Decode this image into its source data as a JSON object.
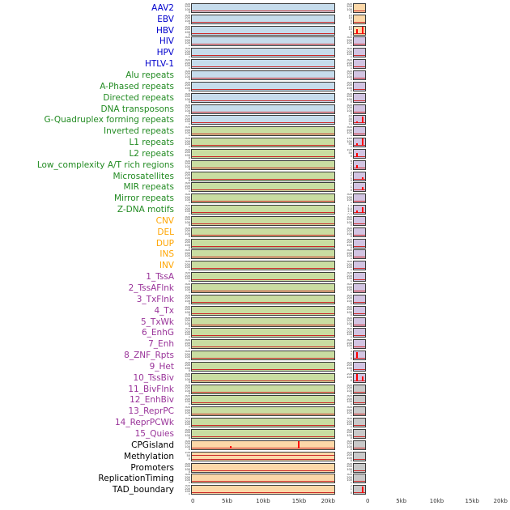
{
  "figure": {
    "panel_colors": {
      "blue": "#c6dcec",
      "green": "#c9dda1",
      "orange": "#fcd8a8",
      "purple": "#d2c4e2",
      "gray": "#c9c9c9"
    },
    "label_colors": {
      "virus": "#0000cc",
      "repeat": "#228b22",
      "sv": "#ffa500",
      "chromhmm": "#993399",
      "other": "#000000"
    },
    "line_color": "#cc2a2a",
    "spike_color": "#ff0000"
  },
  "chart_data": {
    "type": "line",
    "layout": "44 feature rows x 2 columns of mini profile panels, x axis 0-20kb",
    "x_ticks": [
      "0",
      "5kb",
      "10kb",
      "15kb",
      "20kb"
    ],
    "x_range_kb": [
      0,
      20
    ],
    "default_yticks": [
      "300",
      "200",
      "100",
      "0"
    ],
    "default_ymax": 300,
    "rows": [
      {
        "label": "AAV2",
        "group": "virus",
        "left": {
          "bg": "blue"
        },
        "right": {
          "bg": "orange"
        }
      },
      {
        "label": "EBV",
        "group": "virus",
        "left": {
          "bg": "blue"
        },
        "right": {
          "bg": "orange",
          "ymax": 15,
          "yticks": [
            "15",
            "10",
            "5",
            "0"
          ]
        }
      },
      {
        "label": "HBV",
        "group": "virus",
        "left": {
          "bg": "blue"
        },
        "right": {
          "bg": "orange",
          "ymax": 15,
          "yticks": [
            "15",
            "10",
            "5",
            "0"
          ],
          "peaks": [
            {
              "x_kb": 5,
              "v": 8
            },
            {
              "x_kb": 15,
              "v": 14
            }
          ]
        }
      },
      {
        "label": "HIV",
        "group": "virus",
        "left": {
          "bg": "blue"
        },
        "right": {
          "bg": "purple"
        }
      },
      {
        "label": "HPV",
        "group": "virus",
        "left": {
          "bg": "blue"
        },
        "right": {
          "bg": "purple"
        }
      },
      {
        "label": "HTLV-1",
        "group": "virus",
        "left": {
          "bg": "blue"
        },
        "right": {
          "bg": "purple"
        }
      },
      {
        "label": "Alu repeats",
        "group": "repeat",
        "left": {
          "bg": "blue"
        },
        "right": {
          "bg": "purple"
        }
      },
      {
        "label": "A-Phased repeats",
        "group": "repeat",
        "left": {
          "bg": "blue"
        },
        "right": {
          "bg": "purple"
        }
      },
      {
        "label": "Directed repeats",
        "group": "repeat",
        "left": {
          "bg": "blue"
        },
        "right": {
          "bg": "purple"
        }
      },
      {
        "label": "DNA transposons",
        "group": "repeat",
        "left": {
          "bg": "blue"
        },
        "right": {
          "bg": "purple"
        }
      },
      {
        "label": "G-Quadruplex forming repeats",
        "group": "repeat",
        "left": {
          "bg": "blue"
        },
        "right": {
          "bg": "purple",
          "ymax": 40,
          "yticks": [
            "40",
            "30",
            "20",
            "10",
            "0"
          ],
          "peaks": [
            {
              "x_kb": 5,
              "v": 9
            },
            {
              "x_kb": 15,
              "v": 35
            }
          ]
        }
      },
      {
        "label": "Inverted repeats",
        "group": "repeat",
        "left": {
          "bg": "green"
        },
        "right": {
          "bg": "purple"
        }
      },
      {
        "label": "L1 repeats",
        "group": "repeat",
        "left": {
          "bg": "green"
        },
        "right": {
          "bg": "purple",
          "ymax": 150,
          "yticks": [
            "150",
            "100",
            "50",
            "0"
          ],
          "peaks": [
            {
              "x_kb": 5,
              "v": 45
            },
            {
              "x_kb": 15,
              "v": 130
            }
          ]
        }
      },
      {
        "label": "L2 repeats",
        "group": "repeat",
        "left": {
          "bg": "green"
        },
        "right": {
          "bg": "purple",
          "ymax": 100,
          "yticks": [
            "100",
            "50",
            "0"
          ],
          "peaks": [
            {
              "x_kb": 5,
              "v": 45
            }
          ]
        }
      },
      {
        "label": "Low_complexity A/T rich regions",
        "group": "repeat",
        "left": {
          "bg": "green"
        },
        "right": {
          "bg": "purple",
          "ymax": 6,
          "yticks": [
            "6",
            "4",
            "2",
            "0"
          ],
          "peaks": [
            {
              "x_kb": 5,
              "v": 2
            }
          ]
        }
      },
      {
        "label": "Microsatellites",
        "group": "repeat",
        "left": {
          "bg": "green"
        },
        "right": {
          "bg": "purple",
          "ymax": 3,
          "yticks": [
            "3",
            "2",
            "1",
            "0"
          ],
          "peaks": [
            {
              "x_kb": 15,
              "v": 0.8
            }
          ]
        }
      },
      {
        "label": "MIR repeats",
        "group": "repeat",
        "left": {
          "bg": "green"
        },
        "right": {
          "bg": "purple",
          "ymax": 2,
          "yticks": [
            "2",
            "1",
            "0"
          ],
          "peaks": [
            {
              "x_kb": 15,
              "v": 0.8
            }
          ]
        }
      },
      {
        "label": "Mirror repeats",
        "group": "repeat",
        "left": {
          "bg": "green"
        },
        "right": {
          "bg": "purple"
        }
      },
      {
        "label": "Z-DNA motifs",
        "group": "repeat",
        "left": {
          "bg": "green"
        },
        "right": {
          "bg": "purple",
          "ymax": 7.5,
          "yticks": [
            "7.5",
            "5.0",
            "2.5",
            "0.0"
          ],
          "peaks": [
            {
              "x_kb": 5,
              "v": 2.5
            },
            {
              "x_kb": 15,
              "v": 5.5
            }
          ]
        }
      },
      {
        "label": "CNV",
        "group": "sv",
        "left": {
          "bg": "green"
        },
        "right": {
          "bg": "purple"
        }
      },
      {
        "label": "DEL",
        "group": "sv",
        "left": {
          "bg": "green"
        },
        "right": {
          "bg": "purple"
        }
      },
      {
        "label": "DUP",
        "group": "sv",
        "left": {
          "bg": "green"
        },
        "right": {
          "bg": "purple"
        }
      },
      {
        "label": "INS",
        "group": "sv",
        "left": {
          "bg": "green"
        },
        "right": {
          "bg": "purple"
        }
      },
      {
        "label": "INV",
        "group": "sv",
        "left": {
          "bg": "green"
        },
        "right": {
          "bg": "purple"
        }
      },
      {
        "label": "1_TssA",
        "group": "chromhmm",
        "left": {
          "bg": "green"
        },
        "right": {
          "bg": "purple"
        }
      },
      {
        "label": "2_TssAFlnk",
        "group": "chromhmm",
        "left": {
          "bg": "green"
        },
        "right": {
          "bg": "purple"
        }
      },
      {
        "label": "3_TxFlnk",
        "group": "chromhmm",
        "left": {
          "bg": "green"
        },
        "right": {
          "bg": "purple"
        }
      },
      {
        "label": "4_Tx",
        "group": "chromhmm",
        "left": {
          "bg": "green"
        },
        "right": {
          "bg": "purple"
        }
      },
      {
        "label": "5_TxWk",
        "group": "chromhmm",
        "left": {
          "bg": "green"
        },
        "right": {
          "bg": "purple"
        }
      },
      {
        "label": "6_EnhG",
        "group": "chromhmm",
        "left": {
          "bg": "green"
        },
        "right": {
          "bg": "purple"
        }
      },
      {
        "label": "7_Enh",
        "group": "chromhmm",
        "left": {
          "bg": "green"
        },
        "right": {
          "bg": "purple"
        }
      },
      {
        "label": "8_ZNF_Rpts",
        "group": "chromhmm",
        "left": {
          "bg": "green"
        },
        "right": {
          "bg": "purple",
          "ymax": 4,
          "yticks": [
            "4",
            "2",
            "0"
          ],
          "peaks": [
            {
              "x_kb": 5.5,
              "v": 3.3
            }
          ]
        }
      },
      {
        "label": "9_Het",
        "group": "chromhmm",
        "left": {
          "bg": "green"
        },
        "right": {
          "bg": "purple"
        }
      },
      {
        "label": "10_TssBiv",
        "group": "chromhmm",
        "left": {
          "bg": "green"
        },
        "right": {
          "bg": "purple",
          "ymax": 200,
          "yticks": [
            "200",
            "100",
            "0"
          ],
          "peaks": [
            {
              "x_kb": 5,
              "v": 170
            },
            {
              "x_kb": 15,
              "v": 110
            }
          ]
        }
      },
      {
        "label": "11_BivFlnk",
        "group": "chromhmm",
        "left": {
          "bg": "green"
        },
        "right": {
          "bg": "gray"
        }
      },
      {
        "label": "12_EnhBiv",
        "group": "chromhmm",
        "left": {
          "bg": "green"
        },
        "right": {
          "bg": "gray"
        }
      },
      {
        "label": "13_ReprPC",
        "group": "chromhmm",
        "left": {
          "bg": "green"
        },
        "right": {
          "bg": "gray"
        }
      },
      {
        "label": "14_ReprPCWk",
        "group": "chromhmm",
        "left": {
          "bg": "green"
        },
        "right": {
          "bg": "gray"
        }
      },
      {
        "label": "15_Quies",
        "group": "chromhmm",
        "left": {
          "bg": "green"
        },
        "right": {
          "bg": "gray"
        }
      },
      {
        "label": "CPGisland",
        "group": "other",
        "left": {
          "bg": "orange",
          "ymax": 300,
          "yticks": [
            "300",
            "200",
            "100",
            "0"
          ],
          "peaks": [
            {
              "x_kb": 5.5,
              "v": 90
            },
            {
              "x_kb": 15,
              "v": 260
            }
          ]
        },
        "right": {
          "bg": "gray"
        }
      },
      {
        "label": "Methylation",
        "group": "other",
        "left": {
          "bg": "orange",
          "ymax": 100,
          "yticks": [
            "100",
            "50",
            "0"
          ],
          "hline_frac": 0.6
        },
        "right": {
          "bg": "gray"
        }
      },
      {
        "label": "Promoters",
        "group": "other",
        "left": {
          "bg": "orange"
        },
        "right": {
          "bg": "gray"
        }
      },
      {
        "label": "ReplicationTiming",
        "group": "other",
        "left": {
          "bg": "orange"
        },
        "right": {
          "bg": "gray"
        }
      },
      {
        "label": "TAD_boundary",
        "group": "other",
        "left": {
          "bg": "orange"
        },
        "right": {
          "bg": "gray",
          "ymax": 2,
          "yticks": [
            "2",
            "1",
            "0"
          ],
          "peaks": [
            {
              "x_kb": 15,
              "v": 1.7
            }
          ]
        }
      }
    ]
  }
}
